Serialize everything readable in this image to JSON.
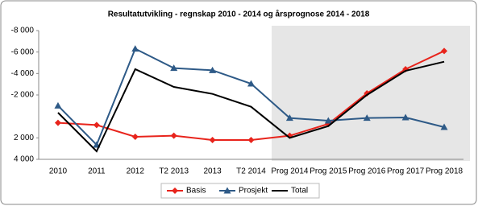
{
  "chart_data": {
    "type": "line",
    "title": "Resultatutvikling  -  regnskap 2010 - 2014 og årsprognose  2014 - 2018",
    "categories": [
      "2010",
      "2011",
      "2012",
      "T2 2013",
      "2013",
      "T2 2014",
      "Prog 2014",
      "Prog 2015",
      "Prog 2016",
      "Prog 2017",
      "Prog 2018"
    ],
    "series": [
      {
        "name": "Basis",
        "color": "#e8241c",
        "marker": "diamond",
        "values": [
          600,
          800,
          1900,
          1800,
          2200,
          2200,
          1800,
          700,
          -2150,
          -4400,
          -6100
        ]
      },
      {
        "name": "Prosjekt",
        "color": "#2e5a87",
        "marker": "triangle",
        "values": [
          -1000,
          2650,
          -6300,
          -4500,
          -4300,
          -3050,
          150,
          400,
          150,
          100,
          1000
        ]
      },
      {
        "name": "Total",
        "color": "#000000",
        "marker": "none",
        "values": [
          -350,
          3250,
          -4400,
          -2750,
          -2100,
          -900,
          2000,
          900,
          -2000,
          -4250,
          -5100
        ]
      }
    ],
    "ylim": [
      4000,
      -8000
    ],
    "yticks": [
      {
        "value": -8000,
        "label": "-8 000"
      },
      {
        "value": -6000,
        "label": "-6 000"
      },
      {
        "value": -4000,
        "label": "-4 000"
      },
      {
        "value": -2000,
        "label": "-2 000"
      },
      {
        "value": 2000,
        "label": "2 000"
      },
      {
        "value": 4000,
        "label": "4 000"
      }
    ],
    "legend": "bottom"
  }
}
